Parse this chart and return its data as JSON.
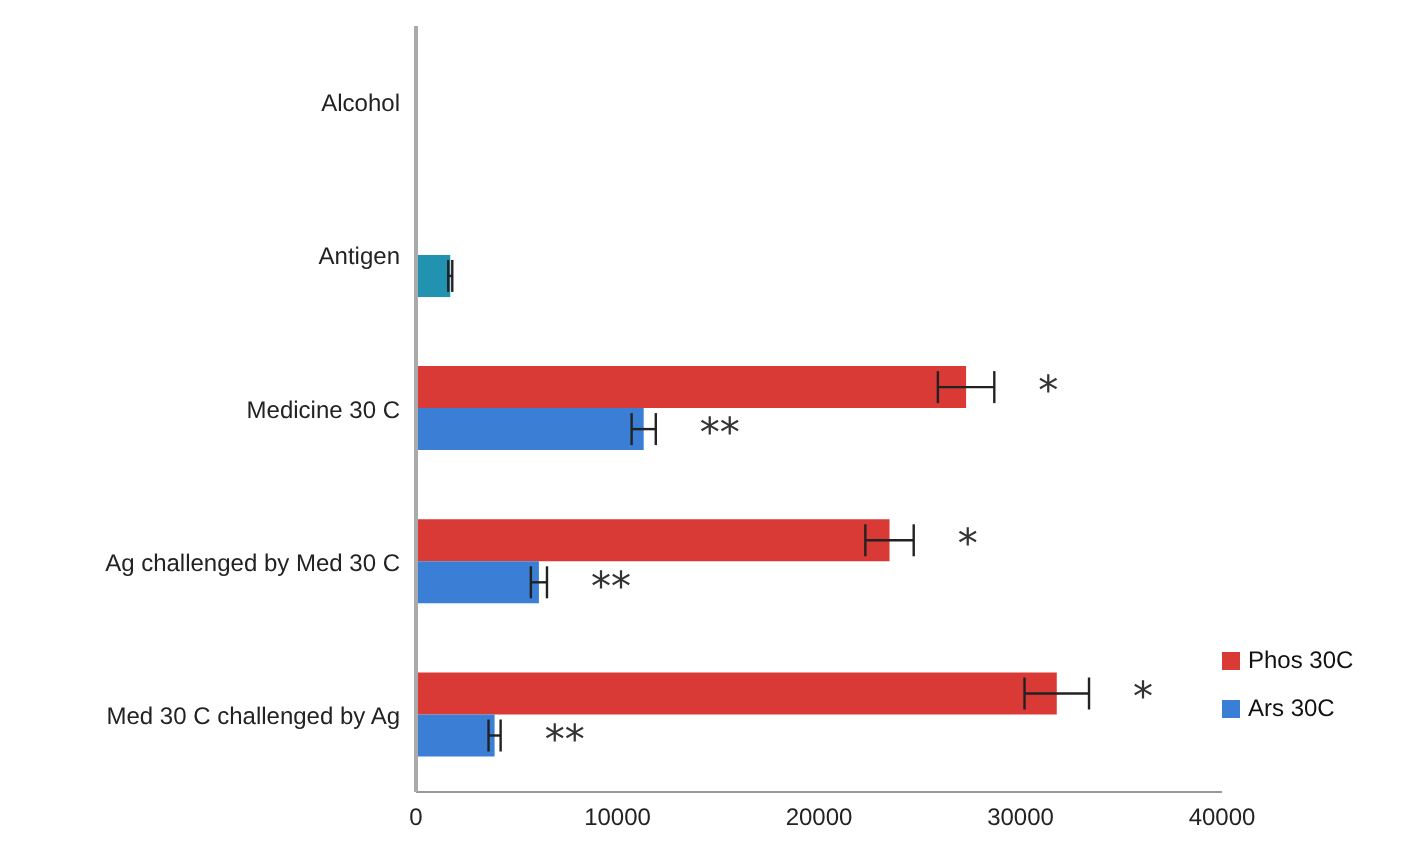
{
  "chart_data": {
    "type": "bar",
    "orientation": "horizontal",
    "categories": [
      "Alcohol",
      "Antigen",
      "Medicine 30 C",
      "Ag challenged  by Med 30 C",
      "Med 30 C challenged  by Ag"
    ],
    "series": [
      {
        "name": "Phos 30C",
        "color": "#d93a36",
        "values": [
          null,
          null,
          27300,
          23500,
          31800
        ],
        "errors": [
          null,
          null,
          1400,
          1200,
          1600
        ]
      },
      {
        "name": "Ars 30C",
        "color": "#3a7fd5",
        "colors": [
          "#2192b0",
          "#2192b0",
          "#3a7fd5",
          "#3a7fd5",
          "#3a7fd5"
        ],
        "values": [
          null,
          1700,
          11300,
          6100,
          3900
        ],
        "errors": [
          null,
          100,
          600,
          400,
          300
        ]
      }
    ],
    "xlim": [
      0,
      40000
    ],
    "xticks": [
      0,
      10000,
      20000,
      30000,
      40000
    ],
    "grid": false,
    "legend": "bottom right",
    "annotations": [
      {
        "text": "*",
        "x": 28700,
        "y": "Medicine 30 C"
      },
      {
        "text": "**",
        "x": 11900,
        "y": "Medicine 30 C"
      },
      {
        "text": "*",
        "x": 24700,
        "y": "Ag challenged  by Med 30 C"
      },
      {
        "text": "**",
        "x": 6500,
        "y": "Ag challenged  by Med 30 C"
      },
      {
        "text": "*",
        "x": 33400,
        "y": "Med 30 C challenged  by Ag"
      },
      {
        "text": "**",
        "x": 4200,
        "y": "Med 30 C challenged  by Ag"
      }
    ]
  }
}
